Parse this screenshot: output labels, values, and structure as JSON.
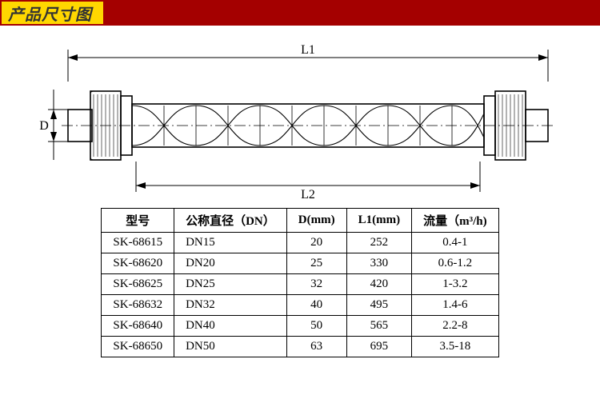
{
  "header": {
    "title": "产品尺寸图"
  },
  "diagram": {
    "labels": {
      "l1": "L1",
      "l2": "L2",
      "d": "D"
    },
    "stroke": "#000000",
    "helix_stroke": "#000000",
    "helix_width": 1.2,
    "outline_width": 1.6
  },
  "table": {
    "columns": [
      "型号",
      "公称直径（DN）",
      "D(mm)",
      "L1(mm)",
      "流量（m³/h)"
    ],
    "rows": [
      [
        "SK-68615",
        "DN15",
        "20",
        "252",
        "0.4-1"
      ],
      [
        "SK-68620",
        "DN20",
        "25",
        "330",
        "0.6-1.2"
      ],
      [
        "SK-68625",
        "DN25",
        "32",
        "420",
        "1-3.2"
      ],
      [
        "SK-68632",
        "DN32",
        "40",
        "495",
        "1.4-6"
      ],
      [
        "SK-68640",
        "DN40",
        "50",
        "565",
        "2.2-8"
      ],
      [
        "SK-68650",
        "DN50",
        "63",
        "695",
        "3.5-18"
      ]
    ]
  }
}
